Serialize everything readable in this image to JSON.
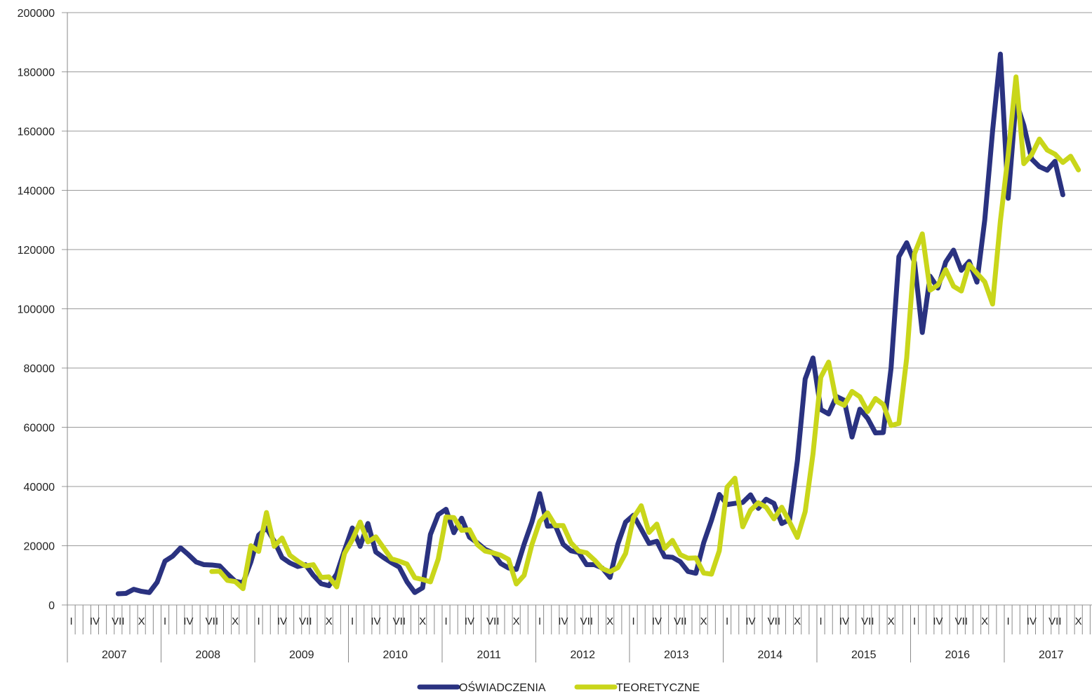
{
  "colors": {
    "oswiadczenia": "#2a3280",
    "teoretyczne": "#c9d61a",
    "grid": "#9a9a9a",
    "text": "#222222"
  },
  "chart_data": {
    "type": "line",
    "title": "",
    "xlabel": "",
    "ylabel": "",
    "ylim": [
      0,
      200000
    ],
    "yticks": [
      "0",
      "20000",
      "40000",
      "60000",
      "80000",
      "100000",
      "120000",
      "140000",
      "160000",
      "180000",
      "200000"
    ],
    "grid": true,
    "legend_position": "bottom",
    "years": [
      "2007",
      "2008",
      "2009",
      "2010",
      "2011",
      "2012",
      "2013",
      "2014",
      "2015",
      "2016",
      "2017"
    ],
    "month_tick_labels": [
      "I",
      "IV",
      "VII",
      "X"
    ],
    "x_start": "2007-01",
    "series": [
      {
        "name": "OŚWIADCZENIA",
        "color": "#2a3280",
        "values": [
          null,
          null,
          null,
          null,
          null,
          null,
          3800,
          3900,
          5300,
          4600,
          4200,
          7700,
          14800,
          16500,
          19300,
          17000,
          14500,
          13600,
          13500,
          13200,
          10500,
          8000,
          7500,
          14500,
          23600,
          26000,
          21500,
          16000,
          14200,
          13000,
          13600,
          10000,
          7200,
          6500,
          10500,
          18500,
          26000,
          19800,
          27500,
          17900,
          16000,
          14300,
          12800,
          7800,
          4200,
          5800,
          23800,
          30500,
          32300,
          24400,
          29300,
          22900,
          21000,
          18800,
          17600,
          14000,
          12500,
          12000,
          20500,
          28000,
          37600,
          26600,
          26800,
          20500,
          18300,
          17700,
          13600,
          13600,
          12500,
          9300,
          20500,
          28000,
          30300,
          25600,
          20800,
          21500,
          16300,
          16100,
          14600,
          11300,
          10700,
          21000,
          28600,
          37300,
          33900,
          34300,
          34600,
          37200,
          32600,
          35700,
          34300,
          27500,
          28800,
          48700,
          76300,
          83400,
          66000,
          64500,
          70400,
          69100,
          56700,
          66100,
          63000,
          58100,
          58200,
          80000,
          117600,
          122300,
          115700,
          92000,
          111000,
          107000,
          115800,
          119800,
          113000,
          116000,
          109000,
          130000,
          160000,
          186000,
          137300,
          170000,
          162000,
          150600,
          148000,
          146800,
          149800,
          138500
        ]
      },
      {
        "name": "TEORETYCZNE",
        "color": "#c9d61a",
        "values": [
          null,
          null,
          null,
          null,
          null,
          null,
          null,
          null,
          null,
          null,
          null,
          null,
          null,
          null,
          null,
          null,
          null,
          null,
          11300,
          11400,
          8300,
          7900,
          5500,
          20000,
          18100,
          31200,
          19800,
          22600,
          16800,
          14800,
          13200,
          13600,
          9300,
          9500,
          6100,
          17400,
          22000,
          28000,
          21300,
          23000,
          19300,
          15600,
          14800,
          13800,
          9200,
          8600,
          7800,
          15500,
          29700,
          29500,
          25200,
          25400,
          20400,
          18200,
          17600,
          16800,
          15400,
          7100,
          10000,
          20400,
          28200,
          31100,
          26800,
          26800,
          21000,
          18200,
          17600,
          15200,
          12300,
          11200,
          12600,
          17400,
          29400,
          33500,
          24500,
          27300,
          19100,
          21800,
          17000,
          15800,
          15900,
          10800,
          10400,
          18300,
          39800,
          42800,
          26400,
          32000,
          34500,
          33000,
          29100,
          33000,
          28000,
          22800,
          31500,
          51000,
          76900,
          82000,
          68700,
          67400,
          72100,
          70300,
          65300,
          69700,
          67700,
          60600,
          61300,
          83300,
          118600,
          125300,
          106300,
          108000,
          113200,
          107600,
          106000,
          115000,
          112000,
          109100,
          101600,
          129600,
          152000,
          178300,
          149000,
          152000,
          157300,
          153600,
          152200,
          149400,
          151500,
          146900
        ]
      }
    ]
  }
}
